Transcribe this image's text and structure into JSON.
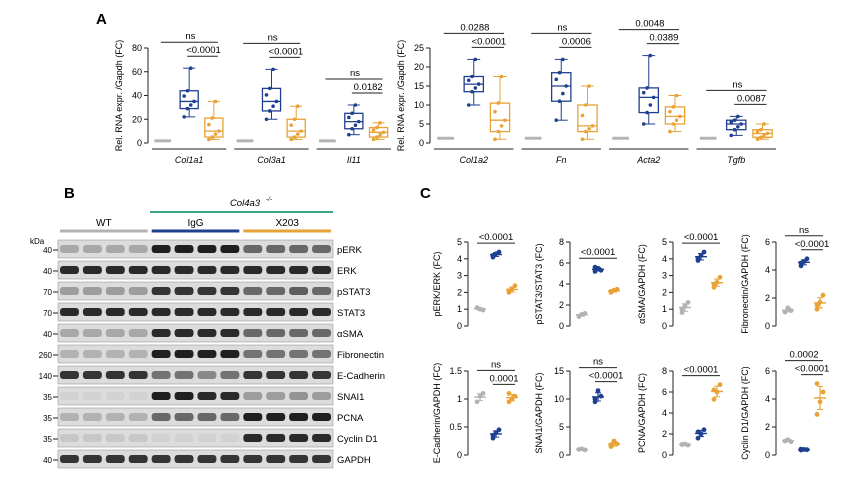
{
  "panel_letters": {
    "a": "A",
    "b": "B",
    "c": "C"
  },
  "colors": {
    "wt": "#b3b3b3",
    "igg": "#1f3f8f",
    "x203": "#e8a235",
    "bracket_col4a3": "#3aa888"
  },
  "panel_b": {
    "kda_label": "kDa",
    "group_header": "Col4a3",
    "group_header_sup": "-/-",
    "lane_groups": [
      "WT",
      "IgG",
      "X203"
    ],
    "bands": [
      {
        "name": "pERK",
        "marker": "40"
      },
      {
        "name": "ERK",
        "marker": "40"
      },
      {
        "name": "pSTAT3",
        "marker": "70"
      },
      {
        "name": "STAT3",
        "marker": "70"
      },
      {
        "name": "αSMA",
        "marker": "40"
      },
      {
        "name": "Fibronectin",
        "marker": "260"
      },
      {
        "name": "E-Cadherin",
        "marker": "140"
      },
      {
        "name": "SNAI1",
        "marker": "35"
      },
      {
        "name": "PCNA",
        "marker": "35"
      },
      {
        "name": "Cyclin D1",
        "marker": "35"
      },
      {
        "name": "GAPDH",
        "marker": "40"
      }
    ]
  },
  "chart_data": [
    {
      "id": "A-left",
      "type": "box",
      "ylabel": "Rel. RNA expr. /Gapdh (FC)",
      "ylim": [
        0,
        80
      ],
      "yticks": [
        0,
        20,
        40,
        60,
        80
      ],
      "groups": [
        "WT",
        "Col4a3-/- IgG",
        "Col4a3-/- X203"
      ],
      "categories": [
        "Col1a1",
        "Col3a1",
        "Il11"
      ],
      "series": [
        {
          "category": "Col1a1",
          "wt": [
            1
          ],
          "igg": {
            "min": 22,
            "q1": 29,
            "median": 35,
            "q3": 44,
            "max": 63
          },
          "x203": {
            "min": 3,
            "q1": 5,
            "median": 10,
            "q3": 21,
            "max": 35
          },
          "annotations": [
            {
              "text": "ns",
              "from": "wt",
              "to": "x203"
            },
            {
              "text": "<0.0001",
              "from": "igg",
              "to": "x203"
            }
          ]
        },
        {
          "category": "Col3a1",
          "wt": [
            1
          ],
          "igg": {
            "min": 20,
            "q1": 27,
            "median": 35,
            "q3": 46,
            "max": 62
          },
          "x203": {
            "min": 3,
            "q1": 5,
            "median": 10,
            "q3": 20,
            "max": 31
          },
          "annotations": [
            {
              "text": "ns",
              "from": "wt",
              "to": "x203"
            },
            {
              "text": "<0.0001",
              "from": "igg",
              "to": "x203"
            }
          ]
        },
        {
          "category": "Il11",
          "wt": [
            1
          ],
          "igg": {
            "min": 7,
            "q1": 12,
            "median": 18,
            "q3": 25,
            "max": 32
          },
          "x203": {
            "min": 3,
            "q1": 5,
            "median": 9,
            "q3": 13,
            "max": 17
          },
          "annotations": [
            {
              "text": "ns",
              "from": "wt",
              "to": "x203"
            },
            {
              "text": "0.0182",
              "from": "igg",
              "to": "x203"
            }
          ]
        }
      ]
    },
    {
      "id": "A-right",
      "type": "box",
      "ylabel": "Rel. RNA expr. /Gapdh (FC)",
      "ylim": [
        0,
        25
      ],
      "yticks": [
        0,
        5,
        10,
        15,
        20,
        25
      ],
      "groups": [
        "WT",
        "Col4a3-/- IgG",
        "Col4a3-/- X203"
      ],
      "categories": [
        "Col1a2",
        "Fn",
        "Acta2",
        "Tgfb"
      ],
      "series": [
        {
          "category": "Col1a2",
          "wt": [
            1
          ],
          "igg": {
            "min": 10,
            "q1": 13.5,
            "median": 15.5,
            "q3": 17.5,
            "max": 22
          },
          "x203": {
            "min": 1,
            "q1": 3,
            "median": 6,
            "q3": 10.5,
            "max": 17.5
          },
          "annotations": [
            {
              "text": "0.0288",
              "from": "wt",
              "to": "x203"
            },
            {
              "text": "<0.0001",
              "from": "igg",
              "to": "x203"
            }
          ]
        },
        {
          "category": "Fn",
          "wt": [
            1
          ],
          "igg": {
            "min": 6,
            "q1": 11,
            "median": 15,
            "q3": 18.5,
            "max": 22
          },
          "x203": {
            "min": 1,
            "q1": 3,
            "median": 4.5,
            "q3": 10,
            "max": 15
          },
          "annotations": [
            {
              "text": "ns",
              "from": "wt",
              "to": "x203"
            },
            {
              "text": "0.0006",
              "from": "igg",
              "to": "x203"
            }
          ]
        },
        {
          "category": "Acta2",
          "wt": [
            1
          ],
          "igg": {
            "min": 5,
            "q1": 8,
            "median": 12,
            "q3": 14.5,
            "max": 23
          },
          "x203": {
            "min": 3,
            "q1": 5,
            "median": 7,
            "q3": 9.5,
            "max": 12.5
          },
          "annotations": [
            {
              "text": "0.0048",
              "from": "wt",
              "to": "x203"
            },
            {
              "text": "0.0389",
              "from": "igg",
              "to": "x203"
            }
          ]
        },
        {
          "category": "Tgfb",
          "wt": [
            1
          ],
          "igg": {
            "min": 2,
            "q1": 3.5,
            "median": 5,
            "q3": 6,
            "max": 7
          },
          "x203": {
            "min": 1,
            "q1": 1.5,
            "median": 2.5,
            "q3": 3.5,
            "max": 5
          },
          "annotations": [
            {
              "text": "ns",
              "from": "wt",
              "to": "x203"
            },
            {
              "text": "0.0087",
              "from": "igg",
              "to": "x203"
            }
          ]
        }
      ]
    },
    {
      "id": "C",
      "type": "scatter",
      "groups": [
        "WT",
        "IgG",
        "X203"
      ],
      "plots": [
        {
          "ylabel": "pERK/ERK (FC)",
          "ylim": [
            0,
            5
          ],
          "yticks": [
            0,
            1,
            2,
            3,
            4,
            5
          ],
          "wt": [
            1.1,
            1.0,
            0.95
          ],
          "igg": [
            4.1,
            4.3,
            4.4,
            4.2
          ],
          "x203": [
            2.0,
            2.2,
            2.4,
            2.1
          ],
          "annotations": [
            {
              "text": "<0.0001",
              "from": "wt",
              "to": "x203"
            }
          ]
        },
        {
          "ylabel": "pSTAT3/STAT3 (FC)",
          "ylim": [
            0,
            8
          ],
          "yticks": [
            0,
            2,
            4,
            6,
            8
          ],
          "wt": [
            0.9,
            1.1,
            1.2
          ],
          "igg": [
            5.2,
            5.5,
            5.3,
            5.6
          ],
          "x203": [
            3.2,
            3.4,
            3.5,
            3.3
          ],
          "annotations": [
            {
              "text": "<0.0001",
              "from": "wt",
              "to": "x203"
            }
          ]
        },
        {
          "ylabel": "αSMA/GAPDH (FC)",
          "ylim": [
            0,
            5
          ],
          "yticks": [
            0,
            1,
            2,
            3,
            4,
            5
          ],
          "wt": [
            0.8,
            1.2,
            1.4,
            1.0
          ],
          "igg": [
            3.9,
            4.2,
            4.4,
            4.0
          ],
          "x203": [
            2.3,
            2.6,
            2.9,
            2.5
          ],
          "annotations": [
            {
              "text": "<0.0001",
              "from": "wt",
              "to": "x203"
            }
          ]
        },
        {
          "ylabel": "Fibronectin/GAPDH (FC)",
          "ylim": [
            0,
            6
          ],
          "yticks": [
            0,
            2,
            4,
            6
          ],
          "wt": [
            1.0,
            1.3,
            1.1
          ],
          "igg": [
            4.3,
            4.6,
            4.8,
            4.5
          ],
          "x203": [
            1.2,
            1.7,
            2.2,
            1.5
          ],
          "annotations": [
            {
              "text": "ns",
              "from": "wt",
              "to": "x203"
            },
            {
              "text": "<0.0001",
              "from": "igg",
              "to": "x203"
            }
          ]
        },
        {
          "ylabel": "E-Cadherin/GAPDH (FC)",
          "ylim": [
            0,
            1.5
          ],
          "yticks": [
            0,
            0.5,
            1.0,
            1.5
          ],
          "wt": [
            0.95,
            1.05,
            1.1
          ],
          "igg": [
            0.3,
            0.4,
            0.45,
            0.35
          ],
          "x203": [
            0.95,
            1.0,
            1.05,
            1.1
          ],
          "annotations": [
            {
              "text": "ns",
              "from": "wt",
              "to": "x203"
            },
            {
              "text": "0.0001",
              "from": "igg",
              "to": "x203"
            }
          ]
        },
        {
          "ylabel": "SNAI1/GAPDH (FC)",
          "ylim": [
            0,
            15
          ],
          "yticks": [
            0,
            5,
            10,
            15
          ],
          "wt": [
            1.0,
            1.1,
            0.9
          ],
          "igg": [
            10.0,
            11.5,
            10.5,
            9.5
          ],
          "x203": [
            1.5,
            2.5,
            2.0,
            1.8
          ],
          "annotations": [
            {
              "text": "ns",
              "from": "wt",
              "to": "x203"
            },
            {
              "text": "<0.0001",
              "from": "igg",
              "to": "x203"
            }
          ]
        },
        {
          "ylabel": "PCNA/GAPDH (FC)",
          "ylim": [
            0,
            8
          ],
          "yticks": [
            0,
            2,
            4,
            6,
            8
          ],
          "wt": [
            1.0,
            1.05,
            0.95
          ],
          "igg": [
            1.6,
            2.0,
            2.4,
            2.2
          ],
          "x203": [
            5.3,
            6.0,
            6.7,
            6.2
          ],
          "annotations": [
            {
              "text": "<0.0001",
              "from": "wt",
              "to": "x203"
            }
          ]
        },
        {
          "ylabel": "Cyclin D1/GAPDH (FC)",
          "ylim": [
            0,
            6
          ],
          "yticks": [
            0,
            2,
            4,
            6
          ],
          "wt": [
            1.0,
            1.1,
            0.95
          ],
          "igg": [
            0.35,
            0.4,
            0.38,
            0.42
          ],
          "x203": [
            2.9,
            3.8,
            4.5,
            5.1
          ],
          "annotations": [
            {
              "text": "0.0002",
              "from": "wt",
              "to": "x203"
            },
            {
              "text": "<0.0001",
              "from": "igg",
              "to": "x203"
            }
          ]
        }
      ]
    }
  ]
}
